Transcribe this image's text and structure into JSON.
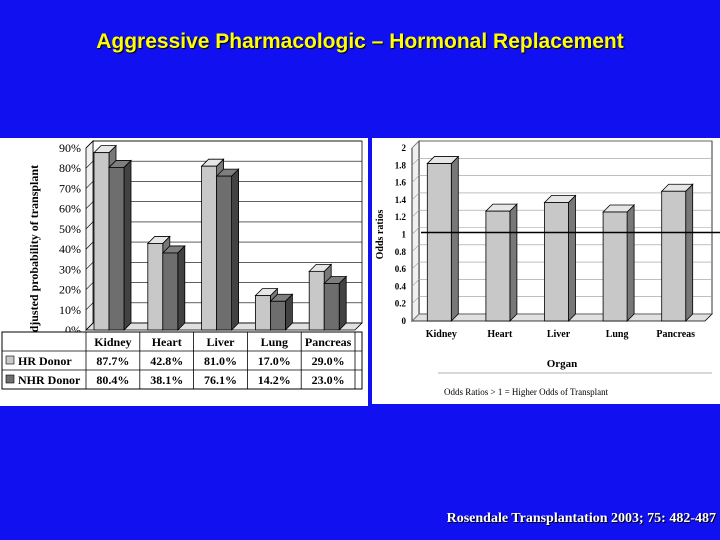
{
  "slide": {
    "title": "Aggressive Pharmacologic – Hormonal Replacement",
    "citation": "Rosendale Transplantation 2003; 75: 482-487"
  },
  "chart_data": [
    {
      "type": "bar",
      "ylabel": "Adjusted probability of transplant",
      "xlabel": "",
      "categories": [
        "Kidney",
        "Heart",
        "Liver",
        "Lung",
        "Pancreas"
      ],
      "yticks": [
        "0%",
        "10%",
        "20%",
        "30%",
        "40%",
        "50%",
        "60%",
        "70%",
        "80%",
        "90%"
      ],
      "ylim": [
        0,
        90
      ],
      "grid": true,
      "series": [
        {
          "name": "HR Donor",
          "values": [
            87.7,
            42.8,
            81.0,
            17.0,
            29.0
          ],
          "labels": [
            "87.7%",
            "42.8%",
            "81.0%",
            "17.0%",
            "29.0%"
          ],
          "color": "#c8c8c8"
        },
        {
          "name": "NHR Donor",
          "values": [
            80.4,
            38.1,
            76.1,
            14.2,
            23.0
          ],
          "labels": [
            "80.4%",
            "38.1%",
            "76.1%",
            "14.2%",
            "23.0%"
          ],
          "color": "#6e6e6e"
        }
      ],
      "legend": "data-table-below"
    },
    {
      "type": "bar",
      "ylabel": "Odds ratios",
      "xlabel": "Organ",
      "categories": [
        "Kidney",
        "Heart",
        "Liver",
        "Lung",
        "Pancreas"
      ],
      "values": [
        1.82,
        1.27,
        1.37,
        1.26,
        1.5
      ],
      "yticks": [
        "0",
        "0.2",
        "0.4",
        "0.6",
        "0.8",
        "1",
        "1.2",
        "1.4",
        "1.6",
        "1.8",
        "2"
      ],
      "ylim": [
        0,
        2
      ],
      "reference_line": 1,
      "note": "Odds Ratios > 1 = Higher Odds of Transplant",
      "grid": true,
      "color": "#c8c8c8"
    }
  ]
}
